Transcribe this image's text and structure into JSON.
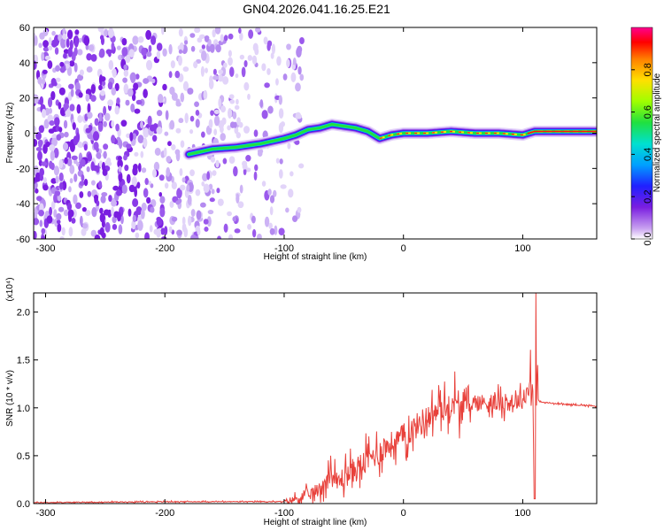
{
  "title": "GN04.2026.041.16.25.E21",
  "chart_data": [
    {
      "type": "heatmap",
      "xlabel": "Height of straight line (km)",
      "ylabel": "Frequency (Hz)",
      "xlim": [
        -310,
        162
      ],
      "ylim": [
        -60,
        60
      ],
      "xticks": [
        -300,
        -200,
        -100,
        0,
        100
      ],
      "yticks": [
        -60,
        -40,
        -20,
        0,
        20,
        40,
        60
      ],
      "colorbar": {
        "label": "Normalized spectral amplitude",
        "range": [
          0,
          1
        ],
        "ticks": [
          "0.0",
          "0.2",
          "0.4",
          "0.6",
          "0.8"
        ],
        "colormap": "rainbow (violet-blue-cyan-green-yellow-red-magenta)"
      },
      "ridge": {
        "description": "dominant frequency track",
        "x": [
          -180,
          -160,
          -140,
          -120,
          -100,
          -90,
          -80,
          -70,
          -60,
          -50,
          -40,
          -30,
          -20,
          -10,
          0,
          20,
          40,
          60,
          80,
          100,
          110,
          130,
          162
        ],
        "y": [
          -12,
          -9,
          -8,
          -6,
          -3,
          -1,
          2,
          3,
          5,
          4,
          3,
          1,
          -3,
          -1,
          0,
          0,
          1,
          0,
          0,
          -1,
          1,
          1,
          1
        ]
      },
      "noise_region_x": [
        -310,
        -100
      ]
    },
    {
      "type": "line",
      "xlabel": "Height of straight line (km)",
      "ylabel": "SNR (10 * v/v)",
      "y_multiplier": "(x10⁴)",
      "xlim": [
        -310,
        162
      ],
      "ylim": [
        0,
        2.2
      ],
      "xticks": [
        -300,
        -200,
        -100,
        0,
        100
      ],
      "yticks": [
        "0.0",
        "0.5",
        "1.0",
        "1.5",
        "2.0"
      ],
      "series": [
        {
          "color": "#e8403a",
          "x": [
            -310,
            -200,
            -100,
            -90,
            -80,
            -70,
            -62,
            -55,
            -50,
            -40,
            -30,
            -20,
            -10,
            0,
            10,
            20,
            30,
            40,
            50,
            60,
            70,
            80,
            90,
            100,
            105,
            108,
            110,
            112,
            115,
            130,
            162
          ],
          "y": [
            0.01,
            0.02,
            0.02,
            0.05,
            0.09,
            0.15,
            0.3,
            0.22,
            0.28,
            0.36,
            0.45,
            0.55,
            0.62,
            0.7,
            0.8,
            0.9,
            0.98,
            1.02,
            1.03,
            1.05,
            1.06,
            1.05,
            1.06,
            1.08,
            1.2,
            1.45,
            0.08,
            1.1,
            1.06,
            1.04,
            1.02
          ]
        }
      ]
    }
  ]
}
